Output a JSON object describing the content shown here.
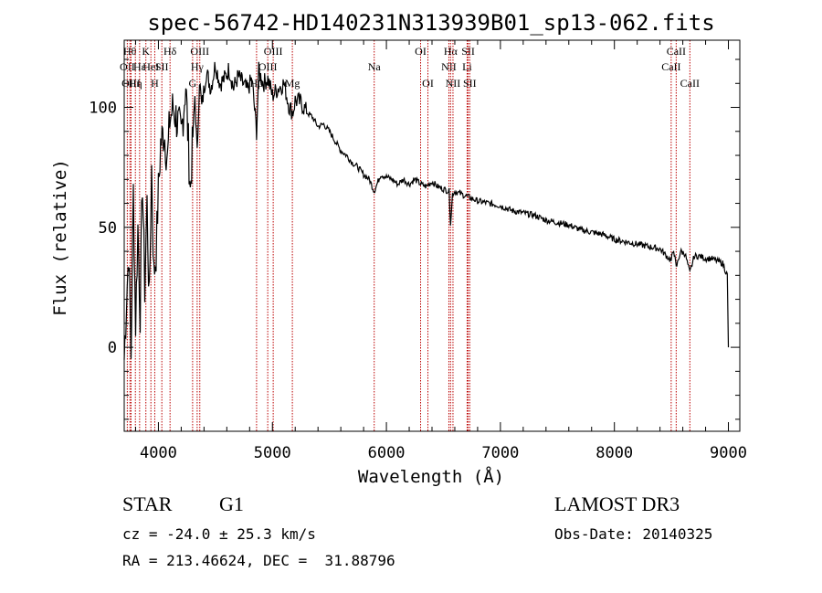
{
  "chart_data": {
    "type": "line",
    "title": "spec-56742-HD140231N313939B01_sp13-062.fits",
    "xlabel": "Wavelength (Å)",
    "ylabel": "Flux (relative)",
    "xlim": [
      3700,
      9100
    ],
    "ylim": [
      -35,
      128
    ],
    "x_ticks": [
      {
        "value": 4000,
        "label": "4000"
      },
      {
        "value": 5000,
        "label": "5000"
      },
      {
        "value": 6000,
        "label": "6000"
      },
      {
        "value": 7000,
        "label": "7000"
      },
      {
        "value": 8000,
        "label": "8000"
      },
      {
        "value": 9000,
        "label": "9000"
      }
    ],
    "y_ticks": [
      {
        "value": 0,
        "label": "0"
      },
      {
        "value": 50,
        "label": "50"
      },
      {
        "value": 100,
        "label": "100"
      }
    ],
    "series": [
      {
        "name": "flux",
        "color": "#000000",
        "x": [
          3700,
          3720,
          3740,
          3760,
          3780,
          3800,
          3820,
          3840,
          3860,
          3880,
          3900,
          3920,
          3940,
          3960,
          3980,
          4000,
          4020,
          4050,
          4080,
          4100,
          4130,
          4160,
          4200,
          4240,
          4280,
          4320,
          4340,
          4360,
          4380,
          4420,
          4460,
          4500,
          4540,
          4580,
          4620,
          4660,
          4700,
          4740,
          4780,
          4820,
          4861,
          4880,
          4920,
          4960,
          5000,
          5050,
          5100,
          5150,
          5180,
          5200,
          5250,
          5300,
          5350,
          5400,
          5450,
          5500,
          5550,
          5600,
          5650,
          5700,
          5750,
          5800,
          5850,
          5893,
          5950,
          6000,
          6050,
          6100,
          6150,
          6200,
          6250,
          6300,
          6350,
          6400,
          6450,
          6500,
          6550,
          6563,
          6580,
          6600,
          6650,
          6700,
          6750,
          6800,
          6900,
          7000,
          7100,
          7200,
          7300,
          7400,
          7500,
          7600,
          7700,
          7800,
          7900,
          8000,
          8100,
          8200,
          8300,
          8400,
          8498,
          8520,
          8542,
          8580,
          8620,
          8662,
          8700,
          8750,
          8800,
          8850,
          8900,
          8950,
          8990,
          9000
        ],
        "y": [
          -5,
          20,
          40,
          -3,
          65,
          10,
          50,
          15,
          70,
          25,
          60,
          18,
          75,
          30,
          40,
          65,
          85,
          90,
          78,
          95,
          100,
          95,
          88,
          110,
          65,
          105,
          80,
          112,
          100,
          115,
          108,
          118,
          110,
          112,
          116,
          108,
          113,
          110,
          107,
          112,
          90,
          115,
          110,
          112,
          105,
          108,
          110,
          100,
          98,
          103,
          102,
          98,
          96,
          92,
          93,
          90,
          86,
          82,
          80,
          77,
          75,
          72,
          70,
          65,
          72,
          71,
          70,
          68,
          70,
          68,
          70,
          68,
          67,
          69,
          67,
          66,
          65,
          52,
          64,
          65,
          64,
          63,
          62,
          61,
          60,
          59,
          57,
          56,
          55,
          53,
          52,
          51,
          49,
          48,
          47,
          45,
          44,
          43,
          42,
          41,
          36,
          41,
          33,
          40,
          39,
          31,
          38,
          38,
          37,
          37,
          36,
          35,
          30,
          0
        ]
      }
    ],
    "line_markers": [
      {
        "wavelength": 3727,
        "row": 1,
        "label": "OII"
      },
      {
        "wavelength": 3750,
        "row": 0,
        "label": "Hθ"
      },
      {
        "wavelength": 3760,
        "row": 2,
        "label": "OIII"
      },
      {
        "wavelength": 3798,
        "row": 2,
        "label": "Hη"
      },
      {
        "wavelength": 3835,
        "row": 1,
        "label": "Hε"
      },
      {
        "wavelength": 3890,
        "row": 0,
        "label": "K"
      },
      {
        "wavelength": 3934,
        "row": 1,
        "label": "HeI"
      },
      {
        "wavelength": 3968,
        "row": 2,
        "label": "H"
      },
      {
        "wavelength": 4030,
        "row": 1,
        "label": "SII"
      },
      {
        "wavelength": 4102,
        "row": 0,
        "label": "Hδ"
      },
      {
        "wavelength": 4300,
        "row": 2,
        "label": "G"
      },
      {
        "wavelength": 4340,
        "row": 1,
        "label": "Hγ"
      },
      {
        "wavelength": 4363,
        "row": 0,
        "label": "OIII"
      },
      {
        "wavelength": 4861,
        "row": 2,
        "label": "Hβ"
      },
      {
        "wavelength": 4959,
        "row": 1,
        "label": "OIII"
      },
      {
        "wavelength": 5007,
        "row": 0,
        "label": "OIII"
      },
      {
        "wavelength": 5175,
        "row": 2,
        "label": "Mg"
      },
      {
        "wavelength": 5893,
        "row": 1,
        "label": "Na"
      },
      {
        "wavelength": 6300,
        "row": 0,
        "label": "OI"
      },
      {
        "wavelength": 6364,
        "row": 2,
        "label": "OI"
      },
      {
        "wavelength": 6548,
        "row": 1,
        "label": "NII"
      },
      {
        "wavelength": 6563,
        "row": 0,
        "label": "Hα"
      },
      {
        "wavelength": 6584,
        "row": 2,
        "label": "NII"
      },
      {
        "wavelength": 6708,
        "row": 1,
        "label": "Li"
      },
      {
        "wavelength": 6717,
        "row": 0,
        "label": "SII"
      },
      {
        "wavelength": 6731,
        "row": 2,
        "label": "SII"
      },
      {
        "wavelength": 8498,
        "row": 1,
        "label": "CaII"
      },
      {
        "wavelength": 8542,
        "row": 0,
        "label": "CaII"
      },
      {
        "wavelength": 8662,
        "row": 2,
        "label": "CaII"
      }
    ],
    "marker_color": "#bb0000"
  },
  "info": {
    "object_class": "STAR",
    "subclass": "G1",
    "survey": "LAMOST DR3",
    "redshift": "cz = -24.0 ± 25.3 km/s",
    "obs_date": "Obs-Date: 20140325",
    "coords": "RA = 213.46624, DEC =  31.88796"
  }
}
